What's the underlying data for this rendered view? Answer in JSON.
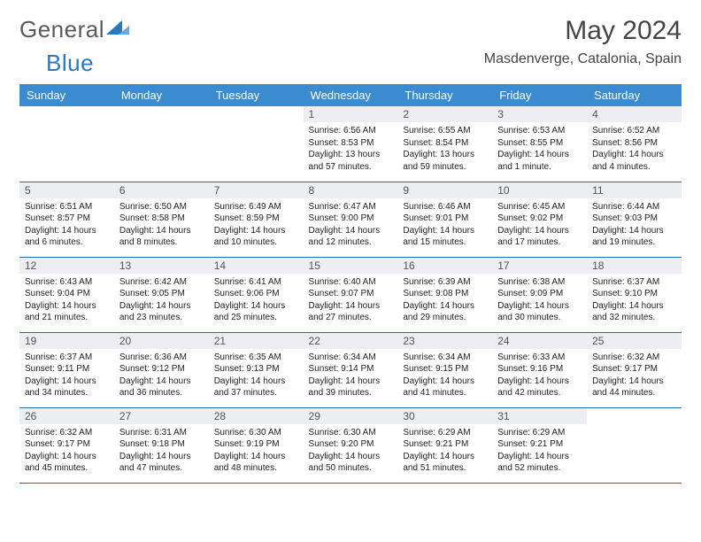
{
  "logo": {
    "text_general": "General",
    "text_blue": "Blue"
  },
  "title": "May 2024",
  "location": "Masdenverge, Catalonia, Spain",
  "colors": {
    "header_bg": "#3a8bd0",
    "row_border": "#2b6aa5",
    "daynum_bg": "#eceeef",
    "logo_gray": "#5a5a5a",
    "logo_blue": "#2b78c2"
  },
  "weekdays": [
    "Sunday",
    "Monday",
    "Tuesday",
    "Wednesday",
    "Thursday",
    "Friday",
    "Saturday"
  ],
  "weeks": [
    [
      {
        "empty": true
      },
      {
        "empty": true
      },
      {
        "empty": true
      },
      {
        "day": "1",
        "sunrise": "6:56 AM",
        "sunset": "8:53 PM",
        "daylight": "13 hours and 57 minutes."
      },
      {
        "day": "2",
        "sunrise": "6:55 AM",
        "sunset": "8:54 PM",
        "daylight": "13 hours and 59 minutes."
      },
      {
        "day": "3",
        "sunrise": "6:53 AM",
        "sunset": "8:55 PM",
        "daylight": "14 hours and 1 minute."
      },
      {
        "day": "4",
        "sunrise": "6:52 AM",
        "sunset": "8:56 PM",
        "daylight": "14 hours and 4 minutes."
      }
    ],
    [
      {
        "day": "5",
        "sunrise": "6:51 AM",
        "sunset": "8:57 PM",
        "daylight": "14 hours and 6 minutes."
      },
      {
        "day": "6",
        "sunrise": "6:50 AM",
        "sunset": "8:58 PM",
        "daylight": "14 hours and 8 minutes."
      },
      {
        "day": "7",
        "sunrise": "6:49 AM",
        "sunset": "8:59 PM",
        "daylight": "14 hours and 10 minutes."
      },
      {
        "day": "8",
        "sunrise": "6:47 AM",
        "sunset": "9:00 PM",
        "daylight": "14 hours and 12 minutes."
      },
      {
        "day": "9",
        "sunrise": "6:46 AM",
        "sunset": "9:01 PM",
        "daylight": "14 hours and 15 minutes."
      },
      {
        "day": "10",
        "sunrise": "6:45 AM",
        "sunset": "9:02 PM",
        "daylight": "14 hours and 17 minutes."
      },
      {
        "day": "11",
        "sunrise": "6:44 AM",
        "sunset": "9:03 PM",
        "daylight": "14 hours and 19 minutes."
      }
    ],
    [
      {
        "day": "12",
        "sunrise": "6:43 AM",
        "sunset": "9:04 PM",
        "daylight": "14 hours and 21 minutes."
      },
      {
        "day": "13",
        "sunrise": "6:42 AM",
        "sunset": "9:05 PM",
        "daylight": "14 hours and 23 minutes."
      },
      {
        "day": "14",
        "sunrise": "6:41 AM",
        "sunset": "9:06 PM",
        "daylight": "14 hours and 25 minutes."
      },
      {
        "day": "15",
        "sunrise": "6:40 AM",
        "sunset": "9:07 PM",
        "daylight": "14 hours and 27 minutes."
      },
      {
        "day": "16",
        "sunrise": "6:39 AM",
        "sunset": "9:08 PM",
        "daylight": "14 hours and 29 minutes."
      },
      {
        "day": "17",
        "sunrise": "6:38 AM",
        "sunset": "9:09 PM",
        "daylight": "14 hours and 30 minutes."
      },
      {
        "day": "18",
        "sunrise": "6:37 AM",
        "sunset": "9:10 PM",
        "daylight": "14 hours and 32 minutes."
      }
    ],
    [
      {
        "day": "19",
        "sunrise": "6:37 AM",
        "sunset": "9:11 PM",
        "daylight": "14 hours and 34 minutes."
      },
      {
        "day": "20",
        "sunrise": "6:36 AM",
        "sunset": "9:12 PM",
        "daylight": "14 hours and 36 minutes."
      },
      {
        "day": "21",
        "sunrise": "6:35 AM",
        "sunset": "9:13 PM",
        "daylight": "14 hours and 37 minutes."
      },
      {
        "day": "22",
        "sunrise": "6:34 AM",
        "sunset": "9:14 PM",
        "daylight": "14 hours and 39 minutes."
      },
      {
        "day": "23",
        "sunrise": "6:34 AM",
        "sunset": "9:15 PM",
        "daylight": "14 hours and 41 minutes."
      },
      {
        "day": "24",
        "sunrise": "6:33 AM",
        "sunset": "9:16 PM",
        "daylight": "14 hours and 42 minutes."
      },
      {
        "day": "25",
        "sunrise": "6:32 AM",
        "sunset": "9:17 PM",
        "daylight": "14 hours and 44 minutes."
      }
    ],
    [
      {
        "day": "26",
        "sunrise": "6:32 AM",
        "sunset": "9:17 PM",
        "daylight": "14 hours and 45 minutes."
      },
      {
        "day": "27",
        "sunrise": "6:31 AM",
        "sunset": "9:18 PM",
        "daylight": "14 hours and 47 minutes."
      },
      {
        "day": "28",
        "sunrise": "6:30 AM",
        "sunset": "9:19 PM",
        "daylight": "14 hours and 48 minutes."
      },
      {
        "day": "29",
        "sunrise": "6:30 AM",
        "sunset": "9:20 PM",
        "daylight": "14 hours and 50 minutes."
      },
      {
        "day": "30",
        "sunrise": "6:29 AM",
        "sunset": "9:21 PM",
        "daylight": "14 hours and 51 minutes."
      },
      {
        "day": "31",
        "sunrise": "6:29 AM",
        "sunset": "9:21 PM",
        "daylight": "14 hours and 52 minutes."
      },
      {
        "empty": true
      }
    ]
  ],
  "labels": {
    "sunrise": "Sunrise:",
    "sunset": "Sunset:",
    "daylight": "Daylight:"
  }
}
